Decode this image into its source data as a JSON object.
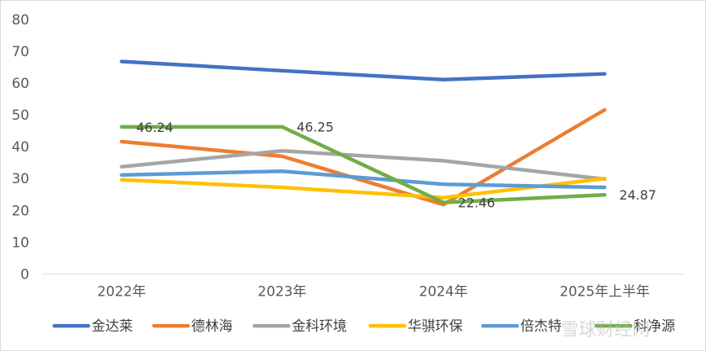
{
  "chart_data": {
    "type": "line",
    "categories": [
      "2022年",
      "2023年",
      "2024年",
      "2025年上半年"
    ],
    "ylim": [
      0,
      80
    ],
    "yticks": [
      "0",
      "10",
      "20",
      "30",
      "40",
      "50",
      "60",
      "70",
      "80"
    ],
    "grid": false,
    "legend_position": "bottom",
    "series": [
      {
        "name": "金达莱",
        "color": "#4472c4",
        "values": [
          66.8,
          63.9,
          61.1,
          62.9
        ]
      },
      {
        "name": "德林海",
        "color": "#ed7d31",
        "values": [
          41.6,
          37.0,
          21.8,
          51.6
        ]
      },
      {
        "name": "金科环境",
        "color": "#a5a5a5",
        "values": [
          33.7,
          38.7,
          35.6,
          29.8
        ]
      },
      {
        "name": "华骐环保",
        "color": "#ffc000",
        "values": [
          29.6,
          27.2,
          24.0,
          30.0
        ]
      },
      {
        "name": "倍杰特",
        "color": "#5b9bd5",
        "values": [
          31.1,
          32.3,
          28.2,
          27.2
        ]
      },
      {
        "name": "科净源",
        "color": "#70ad47",
        "values": [
          46.24,
          46.25,
          22.46,
          24.87
        ],
        "data_labels": [
          "46.24",
          "46.25",
          "22.46",
          "24.87"
        ]
      }
    ]
  },
  "watermark": "雪球财经网"
}
